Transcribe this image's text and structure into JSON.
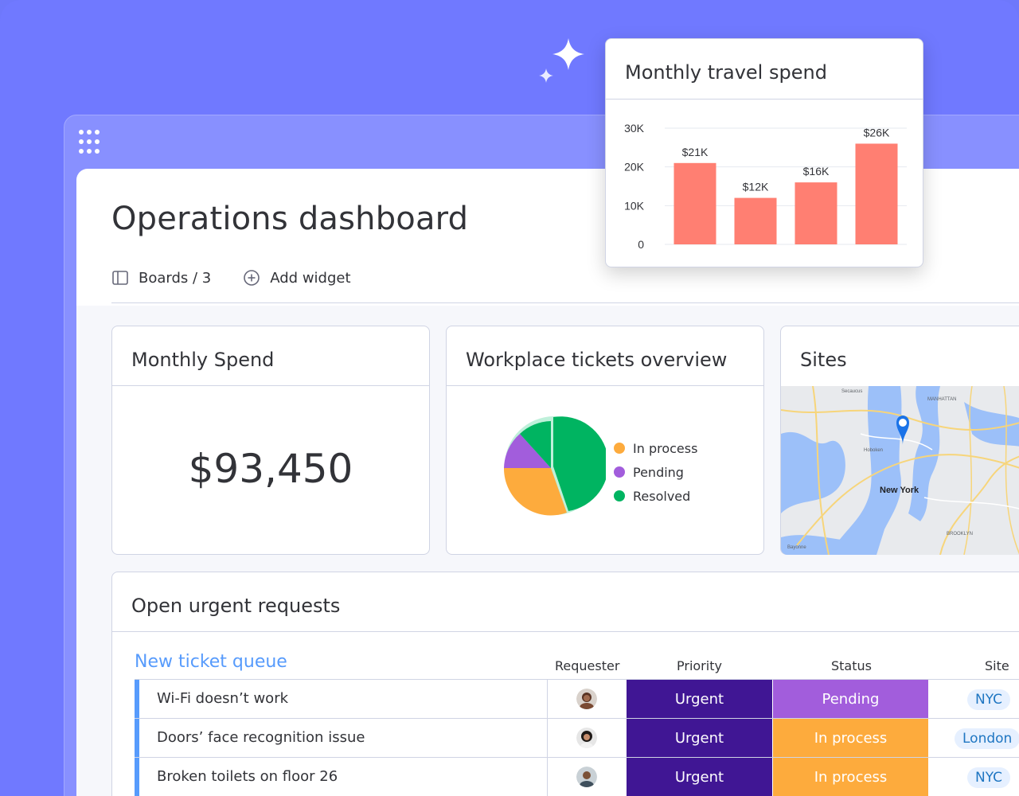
{
  "dashboard": {
    "title": "Operations dashboard",
    "toolbar": {
      "boards_label": "Boards / 3",
      "add_widget_label": "Add widget"
    }
  },
  "widgets": {
    "monthly_spend": {
      "title": "Monthly Spend",
      "value": "$93,450"
    },
    "tickets_overview": {
      "title": "Workplace tickets overview",
      "legend": [
        {
          "label": "In process",
          "color": "#fdab3d"
        },
        {
          "label": "Pending",
          "color": "#a25ddc"
        },
        {
          "label": "Resolved",
          "color": "#00b461"
        }
      ]
    },
    "sites": {
      "title": "Sites",
      "map_labels": {
        "city": "New York",
        "hoboken": "Hoboken",
        "manhattan": "MANHATTAN",
        "brooklyn": "BROOKLYN",
        "secaucus": "Secaucus",
        "bayonne": "Bayonne"
      }
    }
  },
  "requests": {
    "title": "Open urgent requests",
    "group_title": "New ticket queue",
    "columns": [
      "Requester",
      "Priority",
      "Status",
      "Site"
    ],
    "rows": [
      {
        "name": "Wi-Fi doesn’t work",
        "priority": "Urgent",
        "status": "Pending",
        "status_color": "#a25ddc",
        "site": "NYC"
      },
      {
        "name": "Doors’ face recognition issue",
        "priority": "Urgent",
        "status": "In process",
        "status_color": "#fdab3d",
        "site": "London"
      },
      {
        "name": "Broken toilets on floor 26",
        "priority": "Urgent",
        "status": "In process",
        "status_color": "#fdab3d",
        "site": "NYC"
      }
    ]
  },
  "travel_popup": {
    "title": "Monthly travel spend"
  },
  "chart_data": {
    "type": "bar",
    "title": "Monthly travel spend",
    "categories": [
      "",
      "",
      "",
      ""
    ],
    "values": [
      21,
      12,
      16,
      26
    ],
    "data_labels": [
      "$21K",
      "$12K",
      "$16K",
      "$26K"
    ],
    "yticks": [
      "0",
      "10K",
      "20K",
      "30K"
    ],
    "ylim": [
      0,
      30
    ],
    "color": "#ff7f72",
    "grid": true
  },
  "colors": {
    "background": "#7079ff",
    "accent": "#579bfc",
    "urgent": "#401694"
  }
}
